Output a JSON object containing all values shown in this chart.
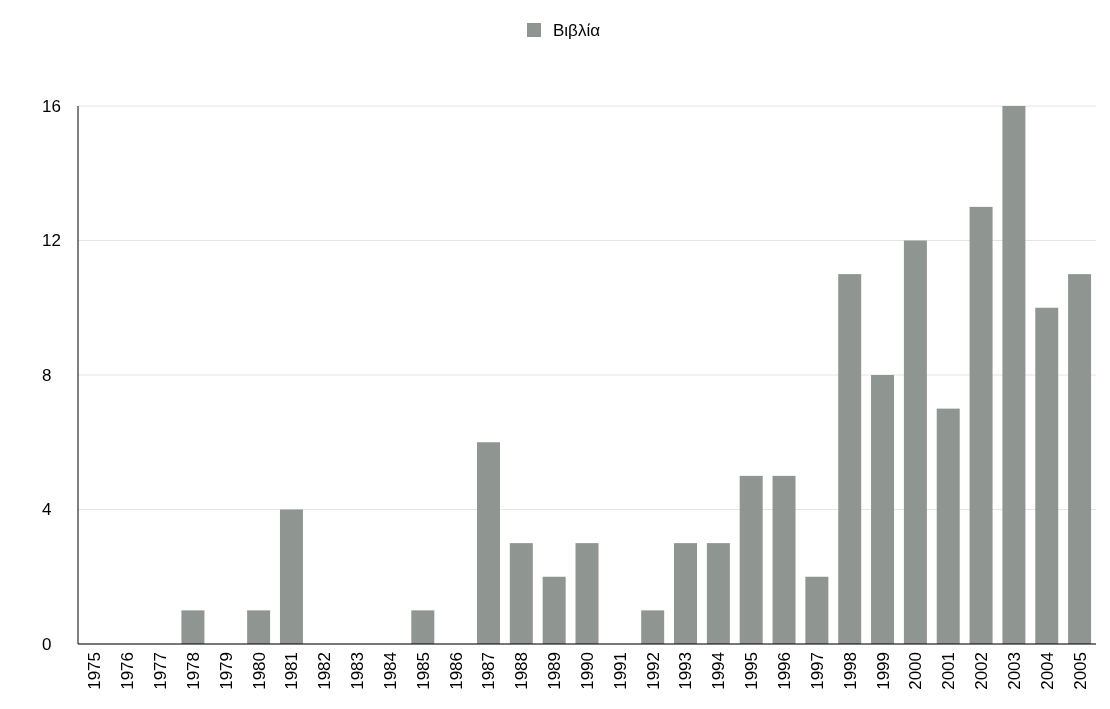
{
  "chart_data": {
    "type": "bar",
    "categories": [
      "1975",
      "1976",
      "1977",
      "1978",
      "1979",
      "1980",
      "1981",
      "1982",
      "1983",
      "1984",
      "1985",
      "1986",
      "1987",
      "1988",
      "1989",
      "1990",
      "1991",
      "1992",
      "1993",
      "1994",
      "1995",
      "1996",
      "1997",
      "1998",
      "1999",
      "2000",
      "2001",
      "2002",
      "2003",
      "2004",
      "2005"
    ],
    "series": [
      {
        "name": "Βιβλία",
        "color": "#8f9691",
        "values": [
          0,
          0,
          0,
          1,
          0,
          1,
          4,
          0,
          0,
          0,
          1,
          0,
          6,
          3,
          2,
          3,
          0,
          1,
          3,
          3,
          5,
          5,
          2,
          11,
          8,
          12,
          7,
          13,
          16,
          10,
          11
        ]
      }
    ],
    "ylim": [
      0,
      16
    ],
    "yticks": [
      0,
      4,
      8,
      12,
      16
    ],
    "grid": "y",
    "legend": "top"
  }
}
